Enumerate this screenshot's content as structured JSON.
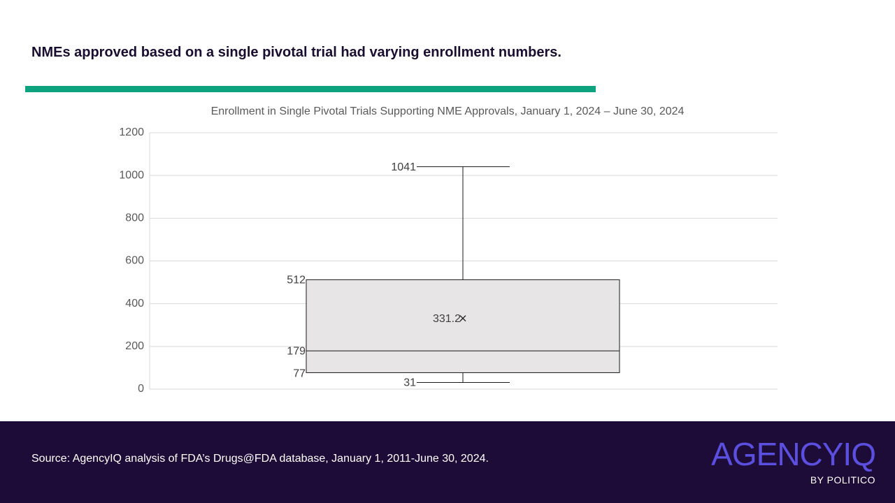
{
  "headline": "NMEs approved based on a single pivotal trial had varying enrollment numbers.",
  "colors": {
    "accent": "#0da37f",
    "footer_bg": "#1e0c38",
    "box_fill": "#e7e5e6",
    "logo": "#5b4fe0"
  },
  "chart_data": {
    "type": "box",
    "title": "Enrollment in Single Pivotal Trials Supporting NME Approvals, January 1, 2024 – June 30, 2024",
    "xlabel": "",
    "ylabel": "",
    "ylim": [
      0,
      1200
    ],
    "yticks": [
      0,
      200,
      400,
      600,
      800,
      1000,
      1200
    ],
    "grid": true,
    "legend": "none",
    "boxes": [
      {
        "min": 31,
        "q1": 77,
        "median": 179,
        "q3": 512,
        "max": 1041,
        "mean": 331.2,
        "labels": {
          "min": "31",
          "q1": "77",
          "median": "179",
          "q3": "512",
          "max": "1041",
          "mean": "331.2"
        }
      }
    ]
  },
  "footer": {
    "source": "Source: AgencyIQ analysis of FDA’s Drugs@FDA database, January 1, 2011-June 30, 2024.",
    "logo_main": "AGENCYIQ",
    "logo_by": "BY POLITICO"
  }
}
